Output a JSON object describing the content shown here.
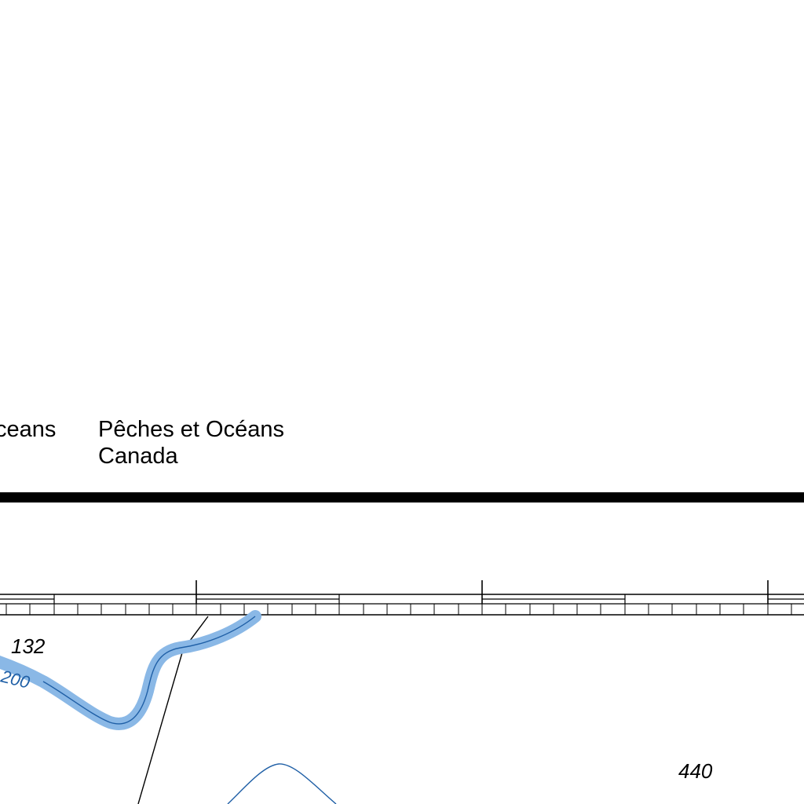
{
  "header": {
    "agency_left_fragment": "ceans",
    "agency_right_line1": "Pêches et Océans",
    "agency_right_line2": "Canada"
  },
  "soundings": [
    {
      "id": "sounding-132",
      "value": "132"
    },
    {
      "id": "sounding-440",
      "value": "440"
    }
  ],
  "contours": [
    {
      "id": "contour-200",
      "label": "200",
      "emphasized": true
    }
  ],
  "colors": {
    "ink": "#000000",
    "depth_contour": "#1f5fa6",
    "contour_highlight": "#8ab8e6",
    "paper": "#ffffff"
  }
}
